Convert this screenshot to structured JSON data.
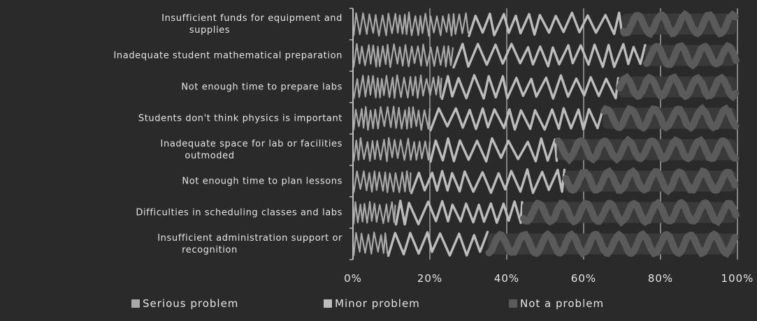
{
  "chart_data": {
    "type": "bar",
    "orientation": "horizontal",
    "stacked": "percent",
    "categories": [
      "Insufficient funds for equipment and supplies",
      "Inadequate student mathematical preparation",
      "Not enough time to prepare labs",
      "Students don't think physics is important",
      "Inadequate space for lab or facilities outmoded",
      "Not enough time to plan lessons",
      "Difficulties in scheduling classes and labs",
      "Insufficient administration support or recognition"
    ],
    "series": [
      {
        "name": "Serious problem",
        "values": [
          30,
          26,
          23,
          20,
          20,
          15,
          11,
          9
        ]
      },
      {
        "name": "Minor problem",
        "values": [
          40,
          50,
          46,
          45,
          33,
          40,
          33,
          26
        ]
      },
      {
        "name": "Not a problem",
        "values": [
          30,
          24,
          31,
          35,
          47,
          45,
          56,
          65
        ]
      }
    ],
    "xlim": [
      0,
      100
    ],
    "x_ticks": [
      "0%",
      "20%",
      "40%",
      "60%",
      "80%",
      "100%"
    ],
    "grid": true,
    "legend_position": "bottom",
    "colors": [
      "#a9a9a9",
      "#bdbdbd",
      "#5a5a5a"
    ],
    "style": "hand-drawn scribble fill"
  }
}
